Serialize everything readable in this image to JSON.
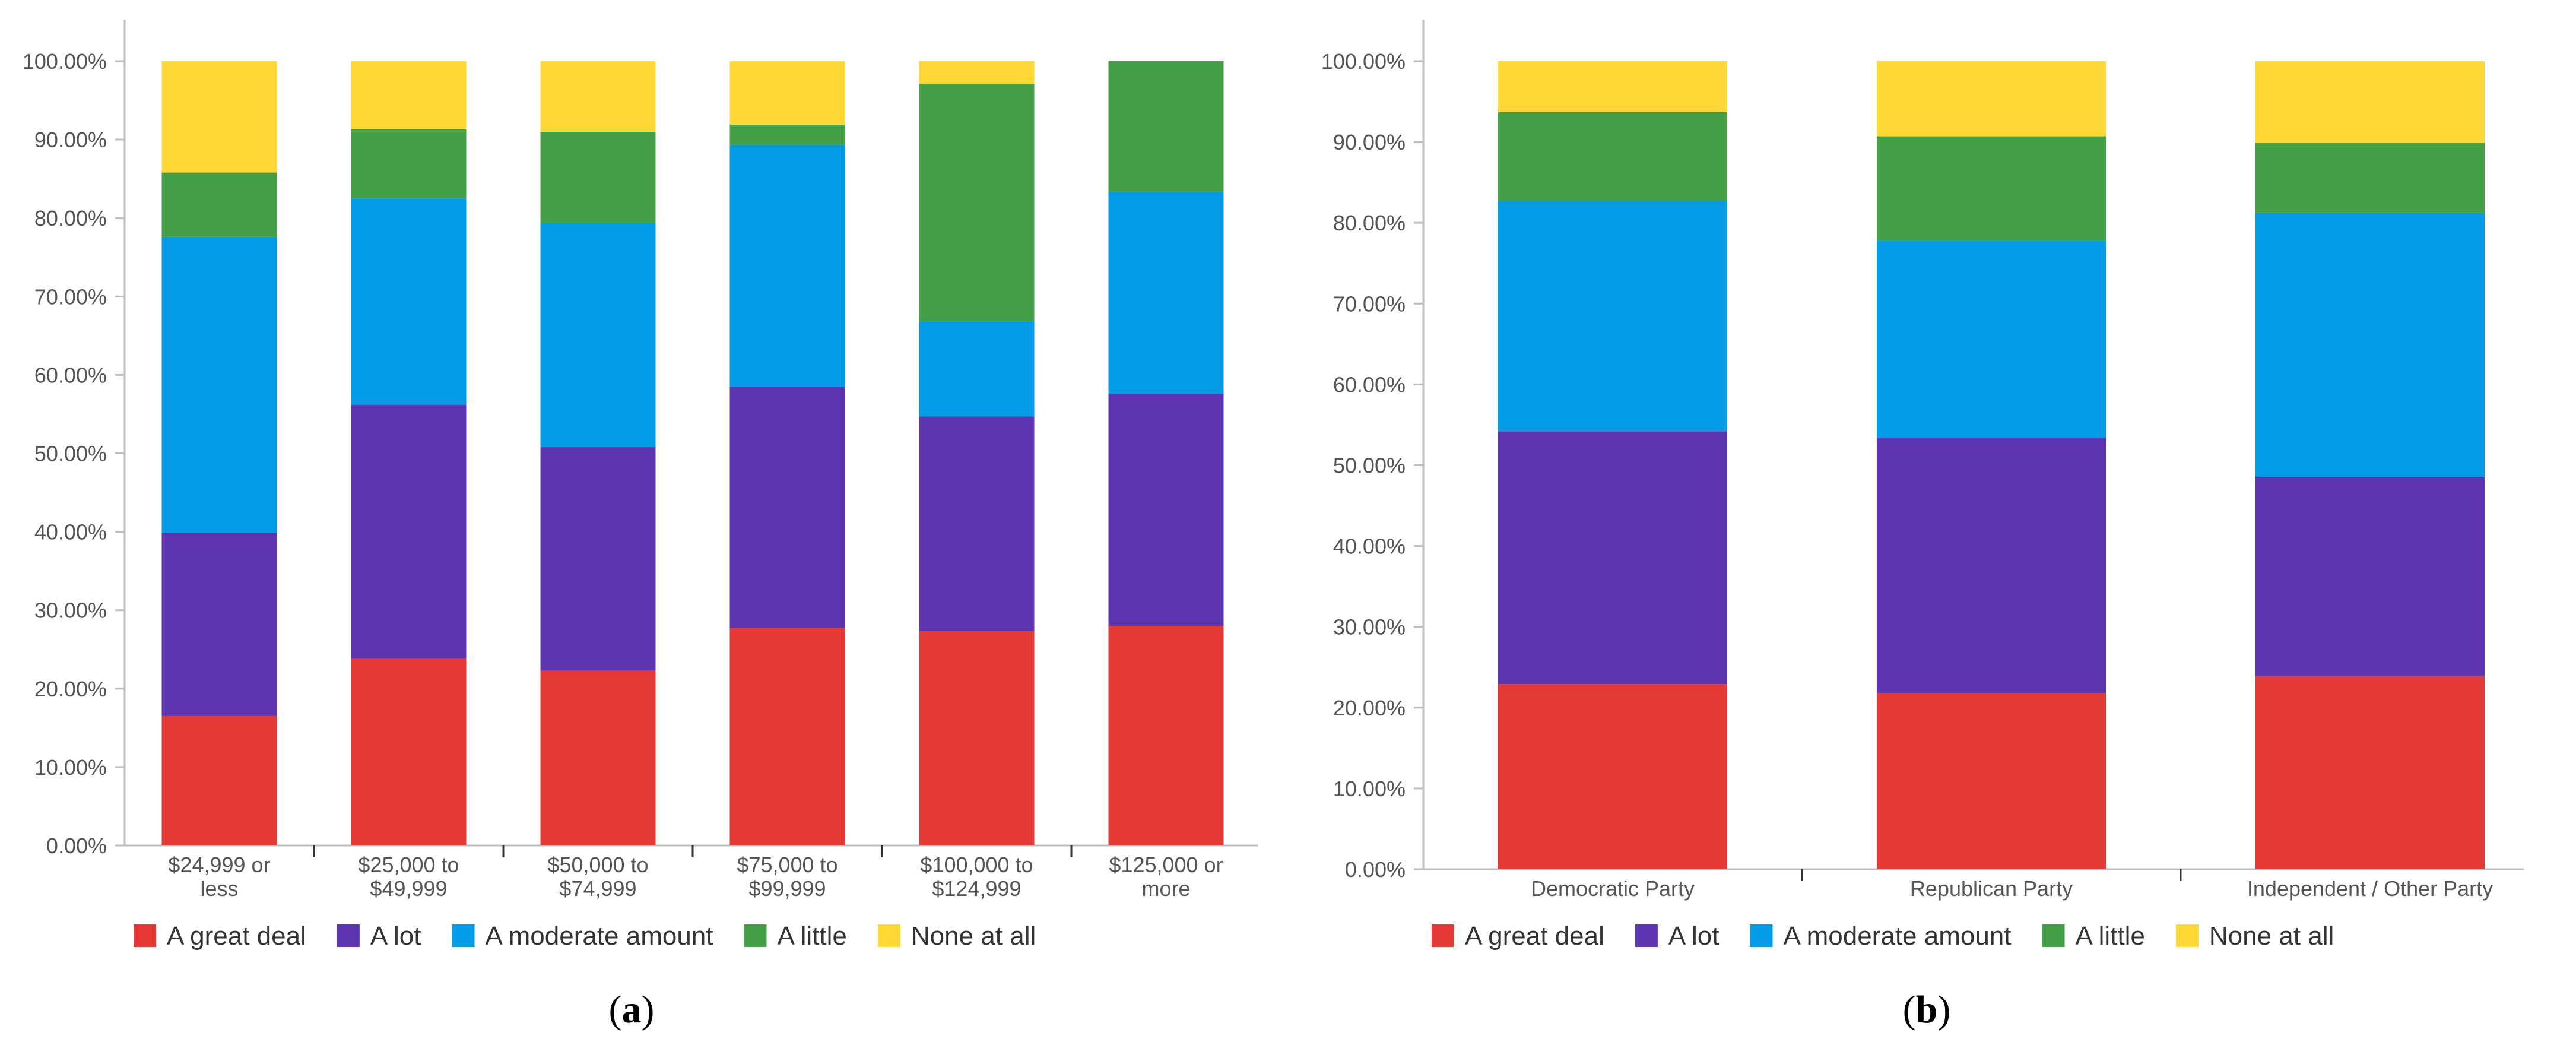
{
  "colors": {
    "A great deal": "#e53935",
    "A lot": "#5e35b1",
    "A moderate amount": "#039be5",
    "A little": "#43a047",
    "None at all": "#fdd835",
    "axis": "#bdbdbd",
    "tick_text": "#555555"
  },
  "chart_data": [
    {
      "type": "bar",
      "stacked": true,
      "panel_label": "a",
      "title": "",
      "xlabel": "",
      "ylabel": "",
      "ylim": [
        0,
        100
      ],
      "y_ticks": [
        "0.00%",
        "10.00%",
        "20.00%",
        "30.00%",
        "40.00%",
        "50.00%",
        "60.00%",
        "70.00%",
        "80.00%",
        "90.00%",
        "100.00%"
      ],
      "categories": [
        [
          "$24,999 or",
          "less"
        ],
        [
          "$25,000 to",
          "$49,999"
        ],
        [
          "$50,000 to",
          "$74,999"
        ],
        [
          "$75,000 to",
          "$99,999"
        ],
        [
          "$100,000 to",
          "$124,999"
        ],
        [
          "$125,000 or",
          "more"
        ]
      ],
      "legend": [
        "A great deal",
        "A lot",
        "A moderate amount",
        "A little",
        "None at all"
      ],
      "legend_position": "bottom",
      "series": [
        {
          "name": "A great deal",
          "values": [
            16.5,
            23.8,
            22.3,
            27.7,
            27.3,
            28.0
          ]
        },
        {
          "name": "A lot",
          "values": [
            23.4,
            32.4,
            28.5,
            30.8,
            27.4,
            29.6
          ]
        },
        {
          "name": "A moderate amount",
          "values": [
            37.7,
            26.3,
            28.6,
            30.8,
            12.1,
            25.7
          ]
        },
        {
          "name": "A little",
          "values": [
            8.2,
            8.8,
            11.6,
            2.6,
            30.3,
            16.7
          ]
        },
        {
          "name": "None at all",
          "values": [
            14.2,
            8.7,
            9.0,
            8.1,
            2.9,
            0.0
          ]
        }
      ]
    },
    {
      "type": "bar",
      "stacked": true,
      "panel_label": "b",
      "title": "",
      "xlabel": "",
      "ylabel": "",
      "ylim": [
        0,
        100
      ],
      "y_ticks": [
        "0.00%",
        "10.00%",
        "20.00%",
        "30.00%",
        "40.00%",
        "50.00%",
        "60.00%",
        "70.00%",
        "80.00%",
        "90.00%",
        "100.00%"
      ],
      "categories": [
        [
          "Democratic Party"
        ],
        [
          "Republican Party"
        ],
        [
          "Independent / Other Party"
        ]
      ],
      "legend": [
        "A great deal",
        "A lot",
        "A moderate amount",
        "A little",
        "None at all"
      ],
      "legend_position": "bottom",
      "series": [
        {
          "name": "A great deal",
          "values": [
            22.9,
            21.8,
            23.9
          ]
        },
        {
          "name": "A lot",
          "values": [
            31.3,
            31.6,
            24.6
          ]
        },
        {
          "name": "A moderate amount",
          "values": [
            28.5,
            24.4,
            32.7
          ]
        },
        {
          "name": "A little",
          "values": [
            11.0,
            12.9,
            8.7
          ]
        },
        {
          "name": "None at all",
          "values": [
            6.3,
            9.3,
            10.1
          ]
        }
      ]
    }
  ]
}
